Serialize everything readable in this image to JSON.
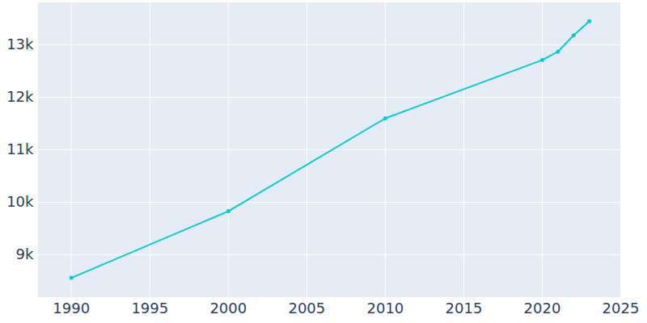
{
  "chart_data": {
    "type": "line",
    "x": [
      1990,
      2000,
      2010,
      2020,
      2021,
      2022,
      2023
    ],
    "values": [
      8560,
      9830,
      11600,
      12710,
      12870,
      13180,
      13450
    ],
    "color": "#00ced1",
    "marker": "circle",
    "xlim": [
      1987.9,
      2025
    ],
    "xticks": [
      1990,
      1995,
      2000,
      2005,
      2010,
      2015,
      2020,
      2025
    ],
    "ylim": [
      8200,
      13800
    ],
    "yticks": [
      {
        "value": 9000,
        "label": "9k"
      },
      {
        "value": 10000,
        "label": "10k"
      },
      {
        "value": 11000,
        "label": "11k"
      },
      {
        "value": 12000,
        "label": "12k"
      },
      {
        "value": 13000,
        "label": "13k"
      }
    ],
    "grid": true
  }
}
